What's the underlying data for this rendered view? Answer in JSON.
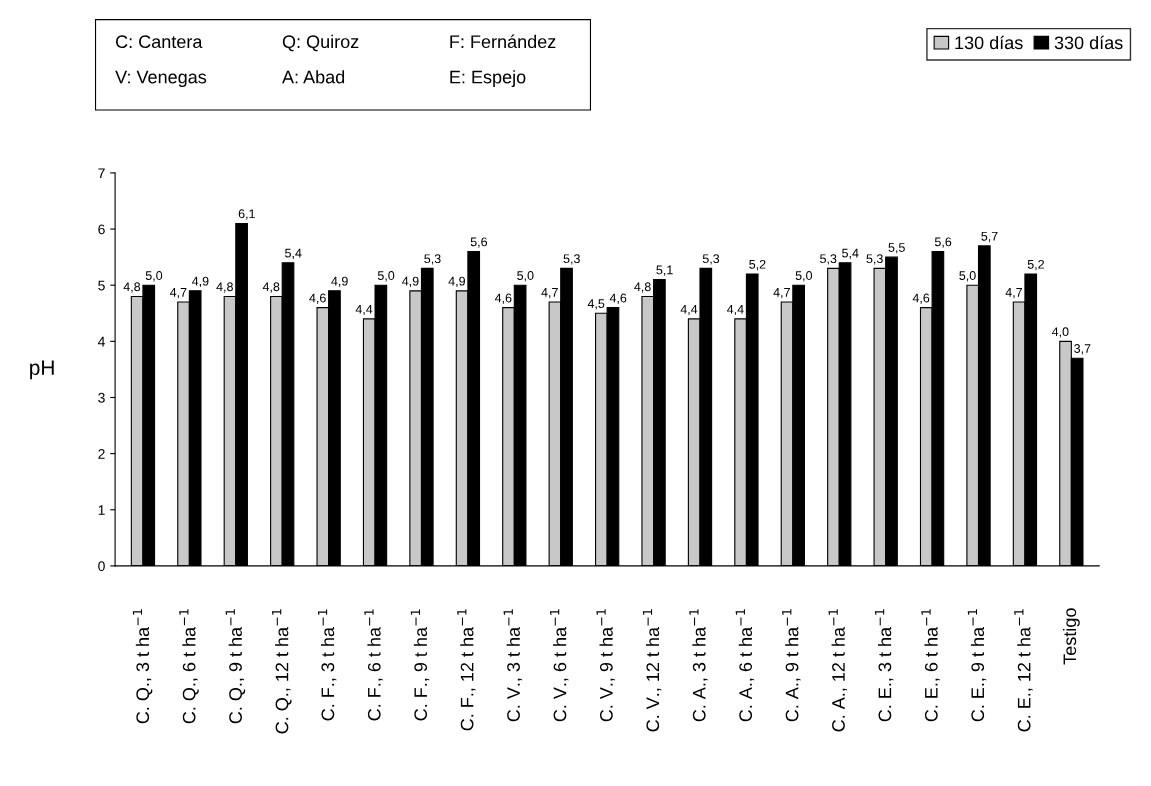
{
  "chart_data": {
    "type": "bar",
    "categories": [
      "C. Q., 3 t ha$^{−1}$",
      "C. Q., 6 t ha$^{−1}$",
      "C. Q., 9 t ha$^{−1}$",
      "C. Q., 12 t ha$^{−1}$",
      "C. F., 3 t ha$^{−1}$",
      "C. F., 6 t ha$^{−1}$",
      "C. F., 9 t ha$^{−1}$",
      "C. F., 12 t ha$^{−1}$",
      "C. V., 3 t ha$^{−1}$",
      "C. V., 6 t ha$^{−1}$",
      "C. V., 9 t ha$^{−1}$",
      "C. V., 12 t ha$^{−1}$",
      "C. A., 3 t ha$^{−1}$",
      "C. A., 6 t ha$^{−1}$",
      "C. A., 9 t ha$^{−1}$",
      "C. A., 12 t ha$^{−1}$",
      "C. E., 3 t ha$^{−1}$",
      "C. E., 6 t ha$^{−1}$",
      "C. E., 9 t ha$^{−1}$",
      "C. E., 12 t ha$^{−1}$",
      "Testigo"
    ],
    "series": [
      {
        "name": "130 días",
        "color": "#c8c8c8",
        "values": [
          4.8,
          4.7,
          4.8,
          4.8,
          4.6,
          4.4,
          4.9,
          4.9,
          4.6,
          4.7,
          4.5,
          4.8,
          4.4,
          4.4,
          4.7,
          5.3,
          5.3,
          4.6,
          5.0,
          4.7,
          4.0
        ],
        "value_labels": [
          "4,8",
          "4,7",
          "4,8",
          "4,8",
          "4,6",
          "4,4",
          "4,9",
          "4,9",
          "4,6",
          "4,7",
          "4,5",
          "4,8",
          "4,4",
          "4,4",
          "4,7",
          "5,3",
          "5,3",
          "4,6",
          "5,0",
          "4,7",
          "4,0"
        ]
      },
      {
        "name": "330 días",
        "color": "#000000",
        "values": [
          5.0,
          4.9,
          6.1,
          5.4,
          4.9,
          5.0,
          5.3,
          5.6,
          5.0,
          5.3,
          4.6,
          5.1,
          5.3,
          5.2,
          5.0,
          5.4,
          5.5,
          5.6,
          5.7,
          5.2,
          3.7
        ],
        "value_labels": [
          "5,0",
          "4,9",
          "6,1",
          "5,4",
          "4,9",
          "5,0",
          "5,3",
          "5,6",
          "5,0",
          "5,3",
          "4,6",
          "5,1",
          "5,3",
          "5,2",
          "5,0",
          "5,4",
          "5,5",
          "5,6",
          "5,7",
          "5,2",
          "3,7"
        ]
      }
    ],
    "ylabel": "pH",
    "ylim": [
      0,
      7
    ],
    "yticks": [
      0,
      1,
      2,
      3,
      4,
      5,
      6,
      7
    ],
    "grid": false,
    "legend": "top right",
    "annotations": [
      "C: Cantera",
      "Q: Quiroz",
      "F: Fernández",
      "V: Venegas",
      "A: Abad",
      "E: Espejo"
    ]
  }
}
